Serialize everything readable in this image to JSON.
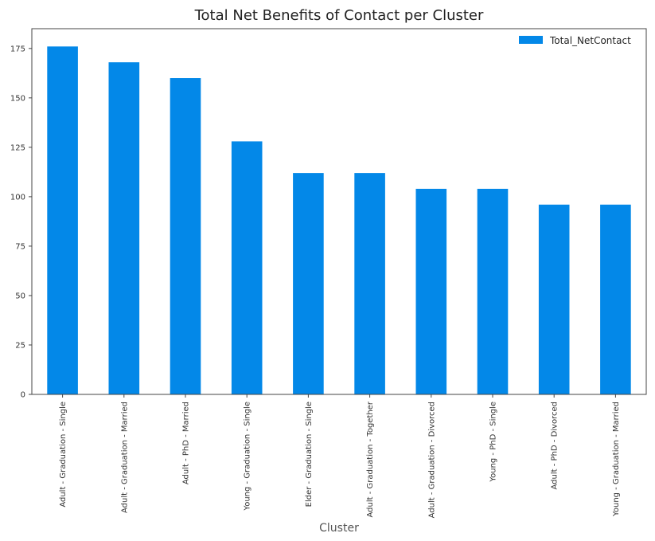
{
  "chart_data": {
    "type": "bar",
    "title": "Total Net Benefits of Contact per Cluster",
    "xlabel": "Cluster",
    "ylabel": "",
    "ylim": [
      0,
      185
    ],
    "yticks": [
      0,
      25,
      50,
      75,
      100,
      125,
      150,
      175
    ],
    "categories": [
      "Adult - Graduation - Single",
      "Adult - Graduation - Married",
      "Adult - PhD - Married",
      "Young - Graduation - Single",
      "Elder - Graduation - Single",
      "Adult - Graduation - Together",
      "Adult - Graduation - Divorced",
      "Young - PhD - Single",
      "Adult - PhD - Divorced",
      "Young - Graduation - Married"
    ],
    "series": [
      {
        "name": "Total_NetContact",
        "color": "#0388e8",
        "values": [
          176,
          168,
          160,
          128,
          112,
          112,
          104,
          104,
          96,
          96
        ]
      }
    ],
    "legend": "top-right",
    "grid": false
  }
}
